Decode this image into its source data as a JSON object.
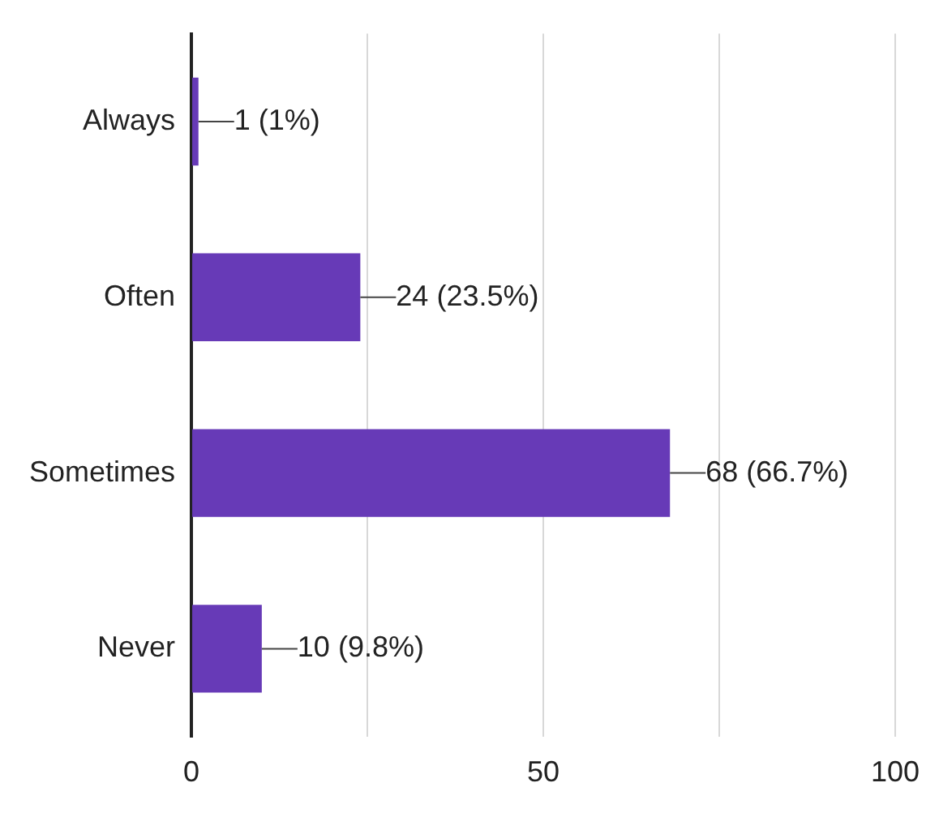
{
  "chart_data": {
    "type": "bar",
    "orientation": "horizontal",
    "categories": [
      "Always",
      "Often",
      "Sometimes",
      "Never"
    ],
    "values": [
      1,
      24,
      68,
      10
    ],
    "color": "#673ab7",
    "value_labels": [
      "1 (1%)",
      "24 (23.5%)",
      "68 (66.7%)",
      "10 (9.8%)"
    ],
    "xlim": [
      0,
      100
    ],
    "xticks": [
      0,
      {
        "value": 25,
        "label": null
      },
      50,
      {
        "value": 75,
        "label": null
      },
      100
    ],
    "grid": "x",
    "legend": false
  }
}
